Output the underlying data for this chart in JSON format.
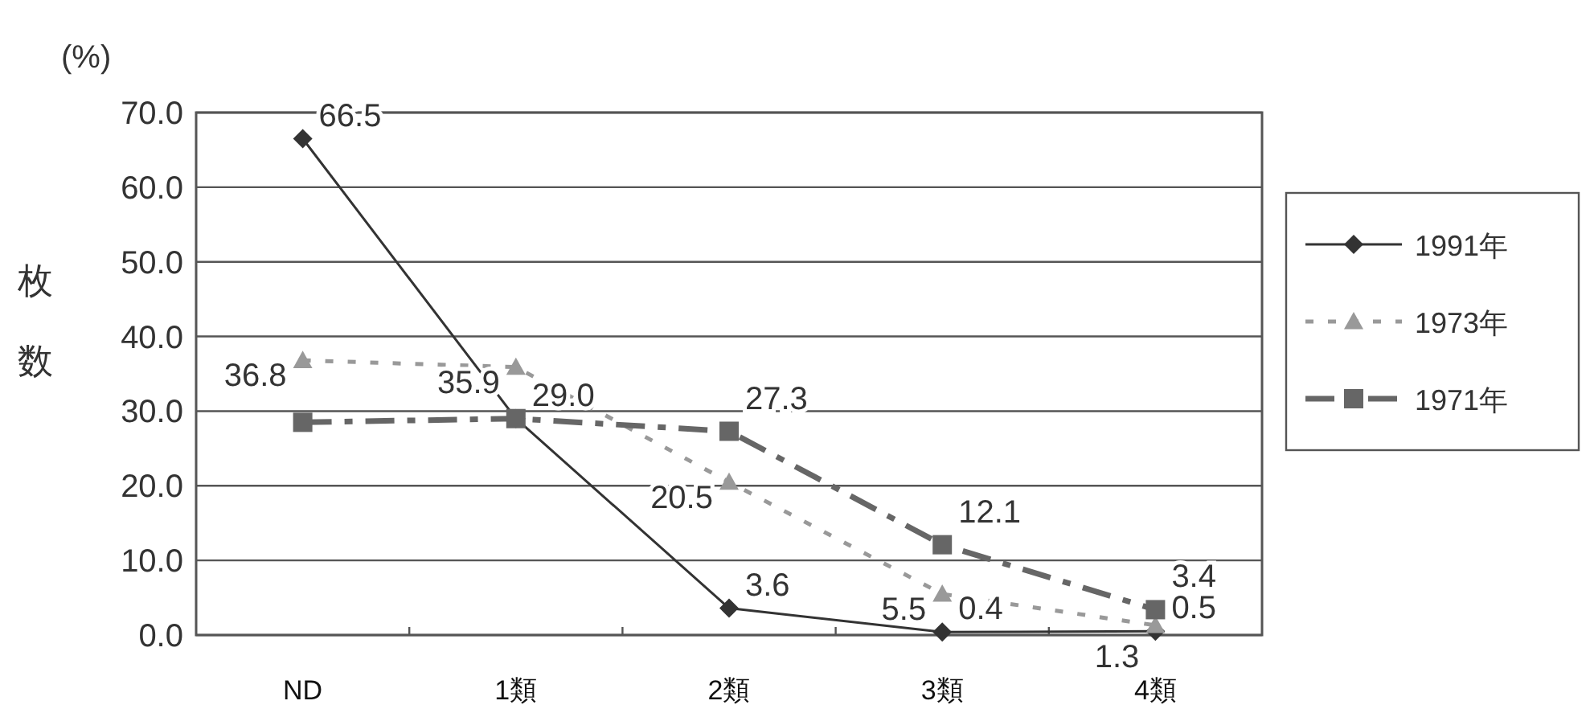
{
  "chart_data": {
    "type": "line",
    "ylabel": "枚数",
    "annotations": [
      "(%)"
    ],
    "categories": [
      "ND",
      "1類",
      "2類",
      "3類",
      "4類"
    ],
    "series": [
      {
        "name": "1991年",
        "color": "#333333",
        "marker": "diamond",
        "line_style": "solid",
        "values": [
          66.5,
          29.0,
          3.6,
          0.4,
          0.5
        ],
        "value_labels": [
          "66.5",
          "29.0",
          "3.6",
          "0.4",
          "0.5"
        ]
      },
      {
        "name": "1973年",
        "color": "#999999",
        "marker": "triangle",
        "line_style": "dotted",
        "values": [
          36.8,
          35.9,
          20.5,
          5.5,
          1.3
        ],
        "value_labels": [
          "36.8",
          "35.9",
          "20.5",
          "5.5",
          "1.3"
        ]
      },
      {
        "name": "1971年",
        "color": "#666666",
        "marker": "square",
        "line_style": "dashed",
        "values": [
          28.5,
          29.0,
          27.3,
          12.1,
          3.4
        ],
        "value_labels": [
          null,
          null,
          "27.3",
          "12.1",
          "3.4"
        ]
      }
    ],
    "ylim": [
      0,
      70
    ],
    "yticks": [
      {
        "value": 0,
        "label": "0.0"
      },
      {
        "value": 10,
        "label": "10.0"
      },
      {
        "value": 20,
        "label": "20.0"
      },
      {
        "value": 30,
        "label": "30.0"
      },
      {
        "value": 40,
        "label": "40.0"
      },
      {
        "value": 50,
        "label": "50.0"
      },
      {
        "value": 60,
        "label": "60.0"
      },
      {
        "value": 70,
        "label": "70.0"
      }
    ],
    "grid": "y",
    "legend": "right"
  }
}
